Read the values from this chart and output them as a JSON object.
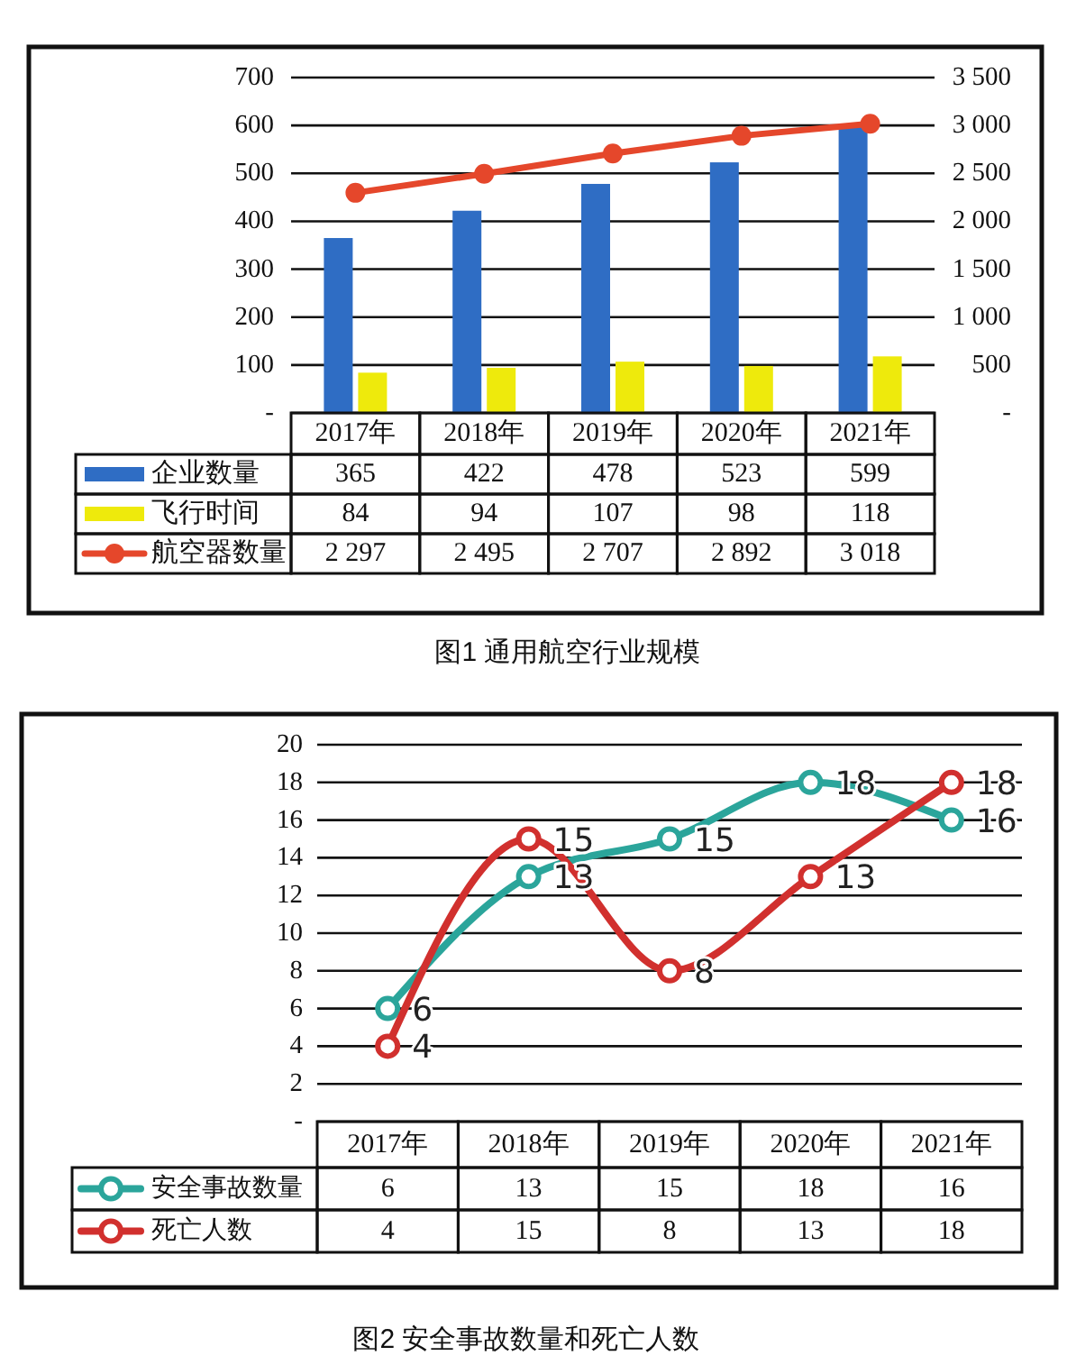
{
  "chart_data": [
    {
      "type": "bar",
      "title": "图1 通用航空行业规模",
      "categories": [
        "2017年",
        "2018年",
        "2019年",
        "2020年",
        "2021年"
      ],
      "series": [
        {
          "name": "企业数量",
          "color": "#2f6dc4",
          "values": [
            365,
            422,
            478,
            523,
            599
          ],
          "value_labels": [
            "365",
            "422",
            "478",
            "523",
            "599"
          ]
        },
        {
          "name": "飞行时间",
          "color": "#eeea0c",
          "values": [
            84,
            94,
            107,
            98,
            118
          ],
          "value_labels": [
            "84",
            "94",
            "107",
            "98",
            "118"
          ]
        },
        {
          "name": "航空器数量",
          "type": "line",
          "axis": "y2",
          "color": "#e5472b",
          "values": [
            2297,
            2495,
            2707,
            2892,
            3018
          ],
          "value_labels": [
            "2 297",
            "2 495",
            "2 707",
            "2 892",
            "3 018"
          ]
        }
      ],
      "ylim": [
        0,
        700
      ],
      "yticks": [
        {
          "value": 0,
          "label": "-"
        },
        100,
        200,
        300,
        400,
        500,
        600,
        700
      ],
      "y2lim": [
        0,
        3500
      ],
      "y2ticks": [
        {
          "value": 0,
          "label": "-"
        },
        500,
        {
          "value": 1000,
          "label": "1 000"
        },
        {
          "value": 1500,
          "label": "1 500"
        },
        {
          "value": 2000,
          "label": "2 000"
        },
        {
          "value": 2500,
          "label": "2 500"
        },
        {
          "value": 3000,
          "label": "3 000"
        },
        {
          "value": 3500,
          "label": "3 500"
        }
      ],
      "grid": "y",
      "legend": "bottom",
      "marker": "circle"
    },
    {
      "type": "line",
      "title": "图2 安全事故数量和死亡人数",
      "categories": [
        "2017年",
        "2018年",
        "2019年",
        "2020年",
        "2021年"
      ],
      "series": [
        {
          "name": "安全事故数量",
          "color": "#2ba59b",
          "values": [
            6,
            13,
            15,
            18,
            16
          ]
        },
        {
          "name": "死亡人数",
          "color": "#d1302e",
          "values": [
            4,
            15,
            8,
            13,
            18
          ]
        }
      ],
      "ylim": [
        0,
        20
      ],
      "yticks": [
        {
          "value": 0,
          "label": "-"
        },
        2,
        4,
        6,
        8,
        10,
        12,
        14,
        16,
        18,
        20
      ],
      "grid": "y",
      "legend": "bottom",
      "marker": "circle",
      "data_labels": true,
      "annotations": [
        {
          "text": "6",
          "x": "2017年",
          "y": 6
        },
        {
          "text": "13",
          "x": "2018年",
          "y": 13
        },
        {
          "text": "15",
          "x": "2019年",
          "y": 15
        },
        {
          "text": "18",
          "x": "2020年",
          "y": 18
        },
        {
          "text": "16",
          "x": "2021年",
          "y": 16
        },
        {
          "text": "4",
          "x": "2017年",
          "y": 4
        },
        {
          "text": "15",
          "x": "2018年",
          "y": 15
        },
        {
          "text": "8",
          "x": "2019年",
          "y": 8
        },
        {
          "text": "13",
          "x": "2020年",
          "y": 13
        },
        {
          "text": "18",
          "x": "2021年",
          "y": 18
        }
      ]
    }
  ]
}
